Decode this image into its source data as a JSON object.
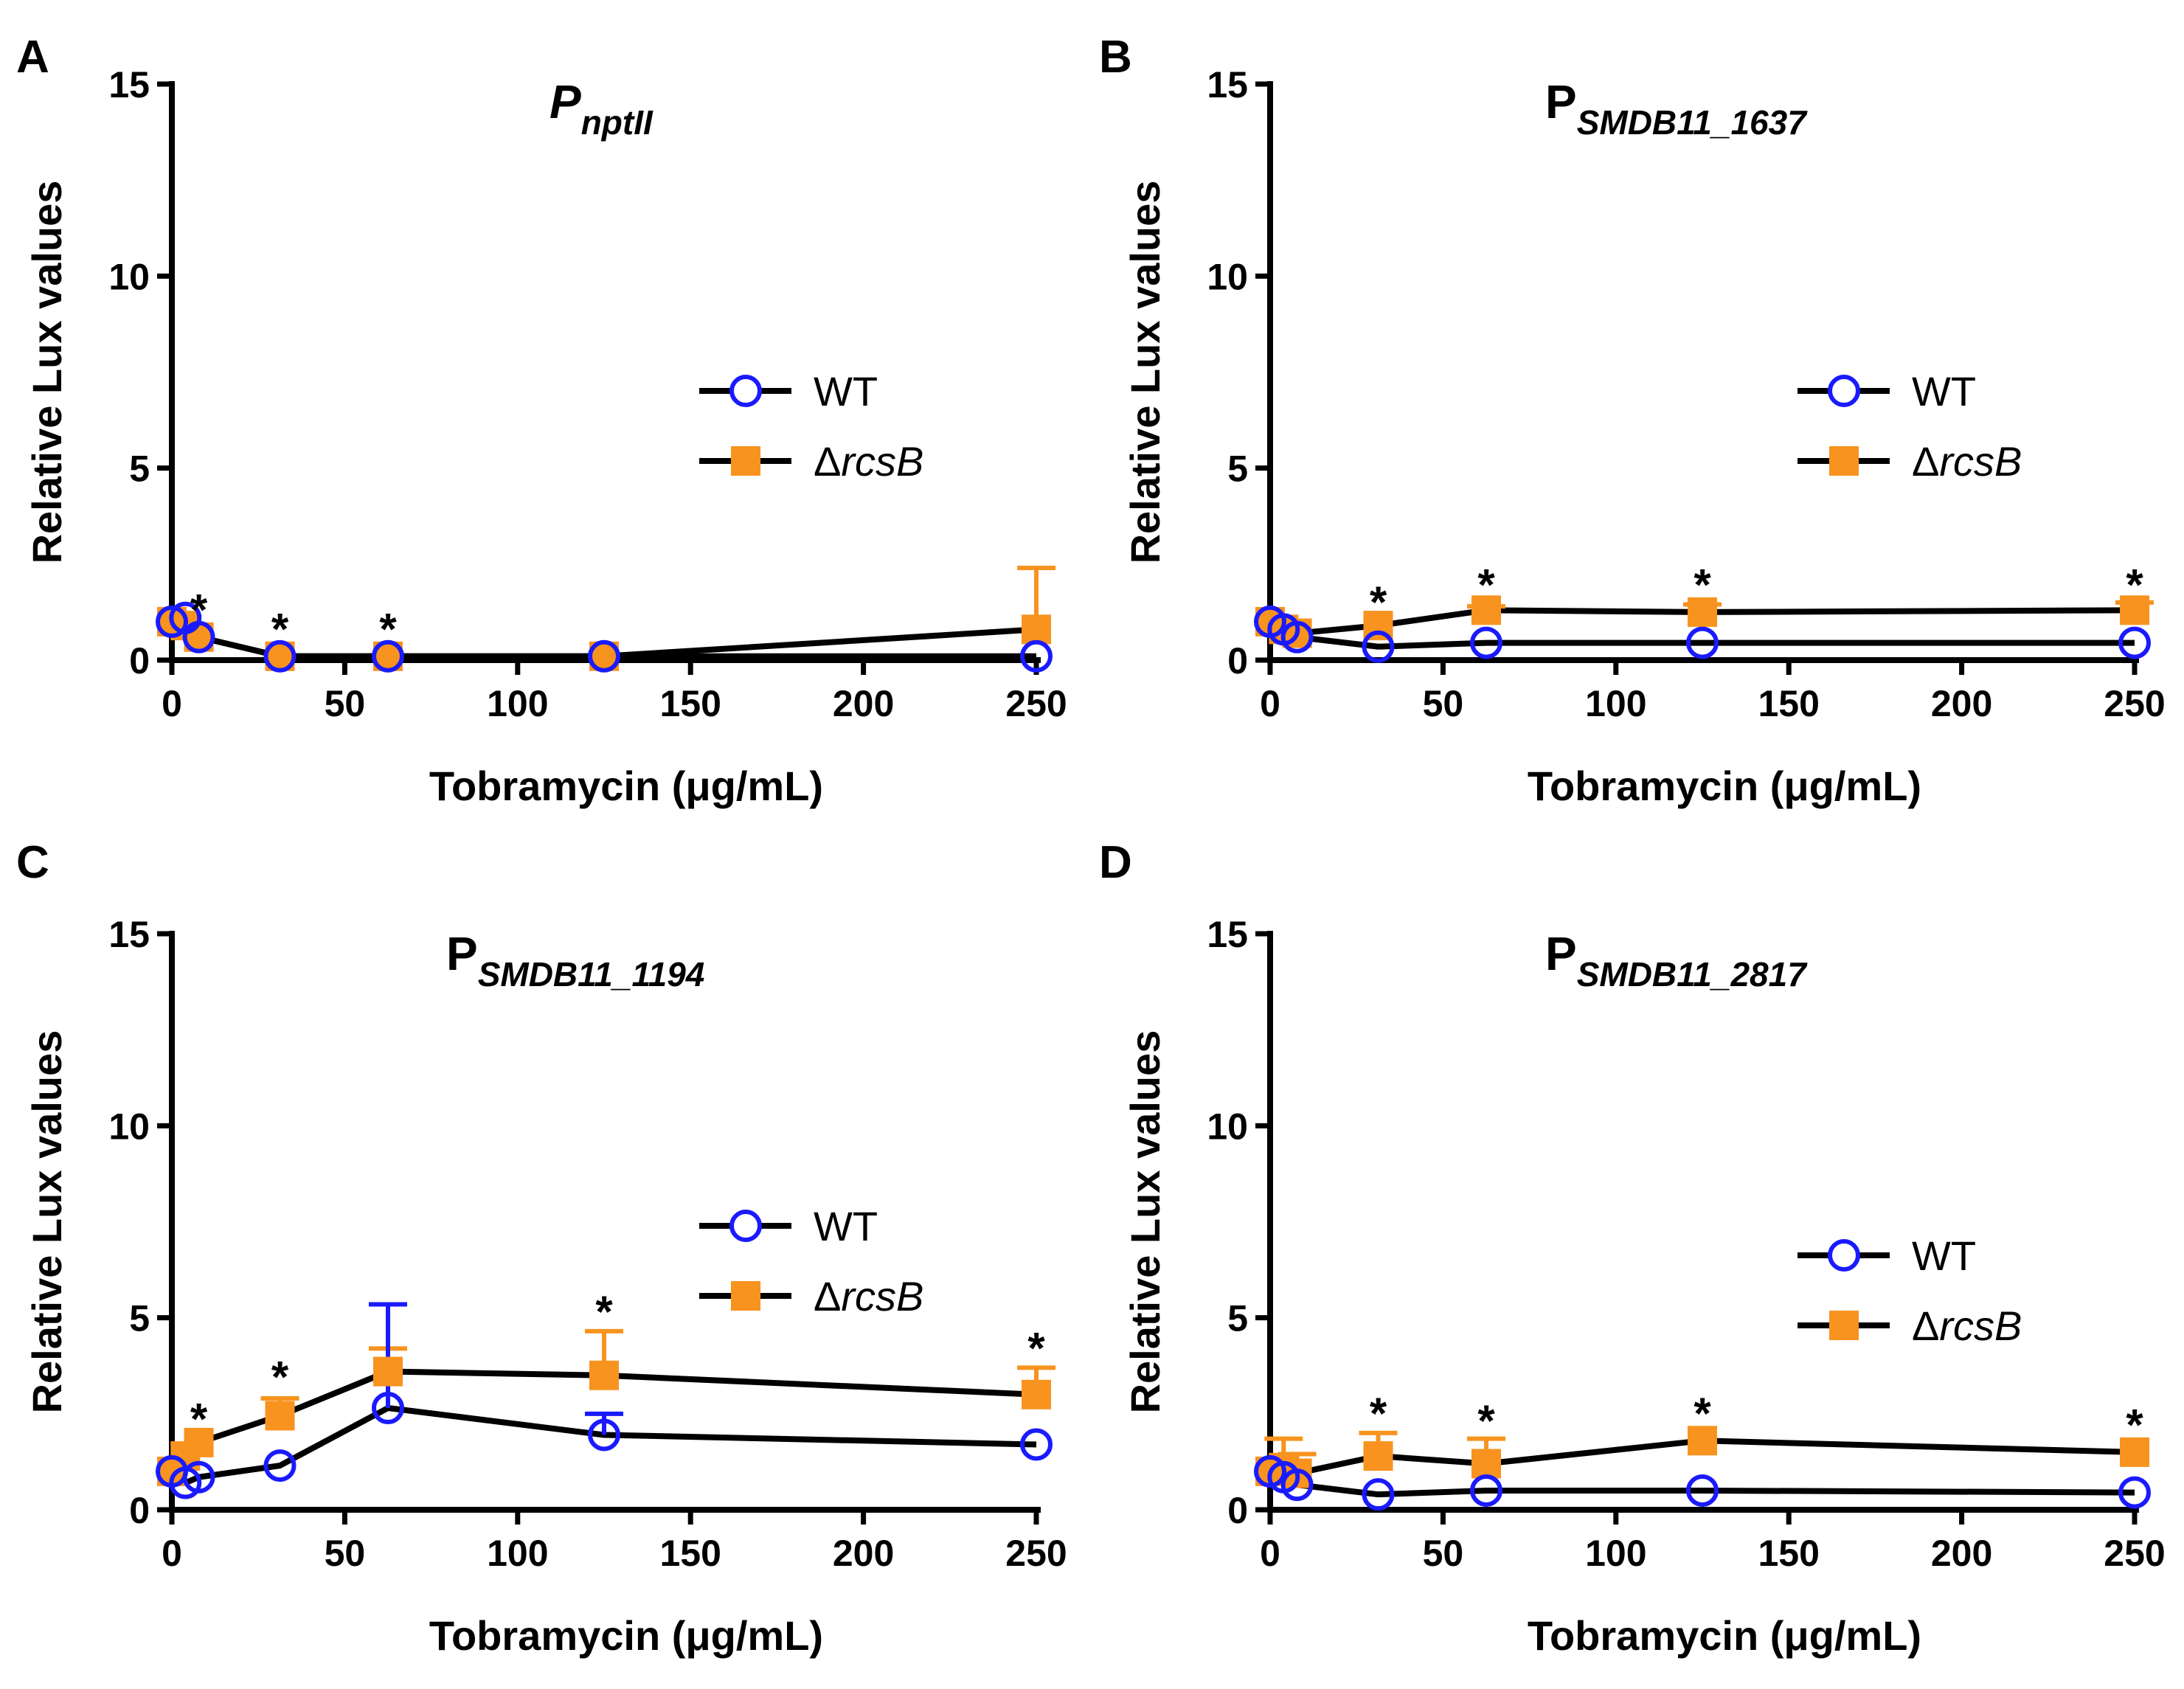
{
  "figure": {
    "colors": {
      "wt": "#1a1aff",
      "rcsb": "#f7931e",
      "axis": "#000000",
      "line": "#000000"
    }
  },
  "chart_data": [
    {
      "id": "A",
      "type": "line",
      "panel_label": "A",
      "title_main": "P",
      "title_sub": "nptII",
      "title_italic_main": true,
      "xlabel": "Tobramycin (μg/mL)",
      "ylabel": "Relative Lux values",
      "xlim": [
        0,
        250
      ],
      "ylim": [
        0,
        15
      ],
      "xticks": [
        0,
        50,
        100,
        150,
        200,
        250
      ],
      "yticks": [
        0,
        5,
        10,
        15
      ],
      "legend": {
        "position": "middle-right",
        "entries": [
          {
            "name_prefix": "",
            "name_italic": "WT",
            "series": "wt"
          },
          {
            "name_prefix": "Δ",
            "name_italic": "rcsB",
            "series": "rcsb"
          }
        ]
      },
      "series": [
        {
          "key": "wt",
          "name": "WT",
          "marker": "open-circle",
          "x": [
            0,
            3.9,
            7.8,
            31.25,
            62.5,
            125,
            250
          ],
          "values": [
            1.0,
            1.1,
            0.6,
            0.1,
            0.1,
            0.1,
            0.1
          ],
          "error": [
            0,
            0,
            0,
            0,
            0,
            0,
            0
          ]
        },
        {
          "key": "rcsb",
          "name": "ΔrcsB",
          "marker": "filled-square",
          "x": [
            0,
            3.9,
            7.8,
            31.25,
            62.5,
            125,
            250
          ],
          "values": [
            1.0,
            0.9,
            0.6,
            0.1,
            0.1,
            0.1,
            0.8
          ],
          "error": [
            0,
            0,
            0,
            0,
            0,
            0,
            1.6
          ]
        }
      ],
      "annotations": [
        {
          "text": "*",
          "x": 7.8,
          "y": 1.3
        },
        {
          "text": "*",
          "x": 31.25,
          "y": 0.8
        },
        {
          "text": "*",
          "x": 62.5,
          "y": 0.8
        }
      ]
    },
    {
      "id": "B",
      "type": "line",
      "panel_label": "B",
      "title_main": "P",
      "title_sub": "SMDB11_1637",
      "title_italic_main": false,
      "xlabel": "Tobramycin (μg/mL)",
      "ylabel": "Relative Lux values",
      "xlim": [
        0,
        250
      ],
      "ylim": [
        0,
        15
      ],
      "xticks": [
        0,
        50,
        100,
        150,
        200,
        250
      ],
      "yticks": [
        0,
        5,
        10,
        15
      ],
      "legend": {
        "position": "middle-right",
        "entries": [
          {
            "name_prefix": "",
            "name_italic": "WT",
            "series": "wt"
          },
          {
            "name_prefix": "Δ",
            "name_italic": "rcsB",
            "series": "rcsb"
          }
        ]
      },
      "series": [
        {
          "key": "wt",
          "name": "WT",
          "marker": "open-circle",
          "x": [
            0,
            3.9,
            7.8,
            31.25,
            62.5,
            125,
            250
          ],
          "values": [
            1.0,
            0.8,
            0.6,
            0.35,
            0.45,
            0.45,
            0.45
          ],
          "error": [
            0,
            0,
            0,
            0,
            0,
            0,
            0
          ]
        },
        {
          "key": "rcsb",
          "name": "ΔrcsB",
          "marker": "filled-square",
          "x": [
            0,
            3.9,
            7.8,
            31.25,
            62.5,
            125,
            250
          ],
          "values": [
            1.0,
            0.8,
            0.7,
            0.9,
            1.3,
            1.25,
            1.3
          ],
          "error": [
            0,
            0,
            0,
            0,
            0.1,
            0.2,
            0.2
          ]
        }
      ],
      "annotations": [
        {
          "text": "*",
          "x": 31.25,
          "y": 1.5
        },
        {
          "text": "*",
          "x": 62.5,
          "y": 1.95
        },
        {
          "text": "*",
          "x": 125,
          "y": 1.95
        },
        {
          "text": "*",
          "x": 250,
          "y": 1.95
        }
      ]
    },
    {
      "id": "C",
      "type": "line",
      "panel_label": "C",
      "title_main": "P",
      "title_sub": "SMDB11_1194",
      "title_italic_main": false,
      "xlabel": "Tobramycin (μg/mL)",
      "ylabel": "Relative Lux values",
      "xlim": [
        0,
        250
      ],
      "ylim": [
        0,
        15
      ],
      "xticks": [
        0,
        50,
        100,
        150,
        200,
        250
      ],
      "yticks": [
        0,
        5,
        10,
        15
      ],
      "legend": {
        "position": "middle-right",
        "entries": [
          {
            "name_prefix": "",
            "name_italic": "WT",
            "series": "wt"
          },
          {
            "name_prefix": "Δ",
            "name_italic": "rcsB",
            "series": "rcsb"
          }
        ]
      },
      "series": [
        {
          "key": "wt",
          "name": "WT",
          "marker": "open-circle",
          "x": [
            0,
            3.9,
            7.8,
            31.25,
            62.5,
            125,
            250
          ],
          "values": [
            1.0,
            0.7,
            0.85,
            1.15,
            2.65,
            1.95,
            1.7
          ],
          "error": [
            0,
            0,
            0,
            0,
            2.7,
            0.55,
            0
          ]
        },
        {
          "key": "rcsb",
          "name": "ΔrcsB",
          "marker": "filled-square",
          "x": [
            0,
            3.9,
            7.8,
            31.25,
            62.5,
            125,
            250
          ],
          "values": [
            1.0,
            1.4,
            1.75,
            2.45,
            3.6,
            3.5,
            3.0
          ],
          "error": [
            0,
            0,
            0,
            0.45,
            0.6,
            1.15,
            0.7
          ]
        }
      ],
      "annotations": [
        {
          "text": "*",
          "x": 7.8,
          "y": 2.35
        },
        {
          "text": "*",
          "x": 31.25,
          "y": 3.45
        },
        {
          "text": "*",
          "x": 125,
          "y": 5.15
        },
        {
          "text": "*",
          "x": 250,
          "y": 4.2
        }
      ]
    },
    {
      "id": "D",
      "type": "line",
      "panel_label": "D",
      "title_main": "P",
      "title_sub": "SMDB11_2817",
      "title_italic_main": false,
      "xlabel": "Tobramycin (μg/mL)",
      "ylabel": "Relative Lux values",
      "xlim": [
        0,
        250
      ],
      "ylim": [
        0,
        15
      ],
      "xticks": [
        0,
        50,
        100,
        150,
        200,
        250
      ],
      "yticks": [
        0,
        5,
        10,
        15
      ],
      "legend": {
        "position": "middle-right",
        "entries": [
          {
            "name_prefix": "",
            "name_italic": "WT",
            "series": "wt"
          },
          {
            "name_prefix": "Δ",
            "name_italic": "rcsB",
            "series": "rcsb"
          }
        ]
      },
      "series": [
        {
          "key": "wt",
          "name": "WT",
          "marker": "open-circle",
          "x": [
            0,
            3.9,
            7.8,
            31.25,
            62.5,
            125,
            250
          ],
          "values": [
            1.0,
            0.85,
            0.65,
            0.4,
            0.5,
            0.5,
            0.45
          ],
          "error": [
            0,
            0,
            0,
            0,
            0,
            0,
            0
          ]
        },
        {
          "key": "rcsb",
          "name": "ΔrcsB",
          "marker": "filled-square",
          "x": [
            0,
            3.9,
            7.8,
            31.25,
            62.5,
            125,
            250
          ],
          "values": [
            1.0,
            1.1,
            0.95,
            1.4,
            1.2,
            1.8,
            1.5
          ],
          "error": [
            0,
            0.75,
            0.5,
            0.6,
            0.65,
            0,
            0
          ]
        }
      ],
      "annotations": [
        {
          "text": "*",
          "x": 31.25,
          "y": 2.5
        },
        {
          "text": "*",
          "x": 62.5,
          "y": 2.3
        },
        {
          "text": "*",
          "x": 125,
          "y": 2.5
        },
        {
          "text": "*",
          "x": 250,
          "y": 2.2
        }
      ]
    }
  ]
}
